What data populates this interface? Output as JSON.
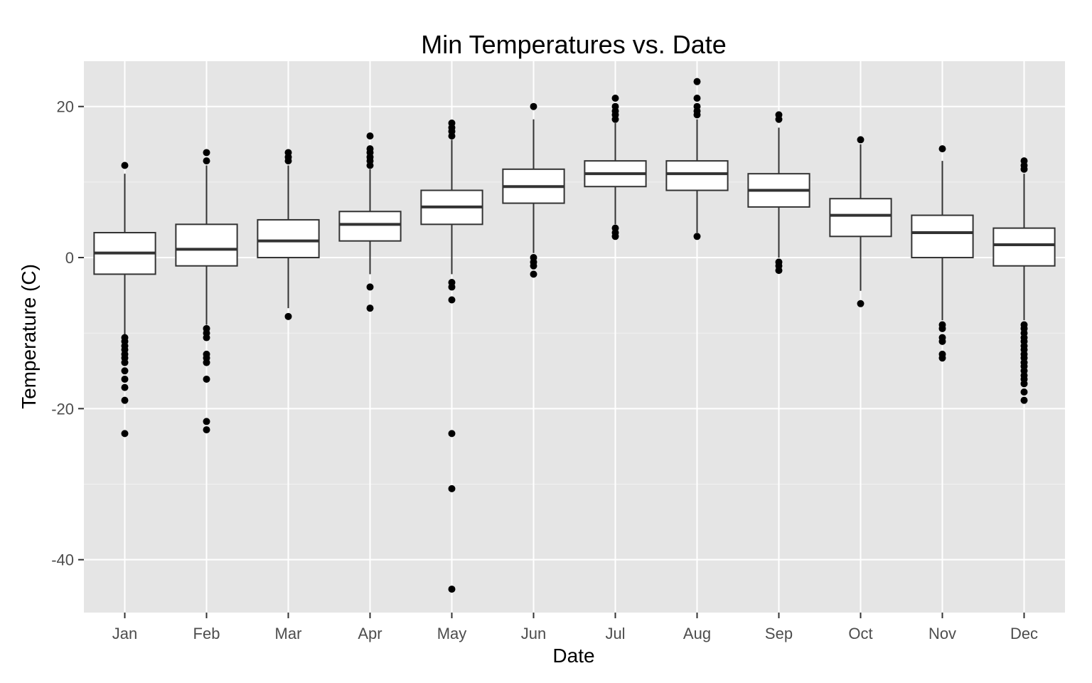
{
  "chart_data": {
    "type": "boxplot",
    "title": "Min Temperatures vs. Date",
    "xlabel": "Date",
    "ylabel": "Temperature (C)",
    "ylim": [
      -47,
      26
    ],
    "yticks": [
      -40,
      -20,
      0,
      20
    ],
    "grid": true,
    "categories": [
      "Jan",
      "Feb",
      "Mar",
      "Apr",
      "May",
      "Jun",
      "Jul",
      "Aug",
      "Sep",
      "Oct",
      "Nov",
      "Dec"
    ],
    "boxes": [
      {
        "q1": -2.2,
        "median": 0.6,
        "q3": 3.3,
        "whisker_low": -10.4,
        "whisker_high": 11.1,
        "outliers": [
          12.2,
          -10.6,
          -11.1,
          -11.7,
          -12.2,
          -12.8,
          -13.3,
          -13.9,
          -15.0,
          -16.1,
          -17.2,
          -18.9,
          -23.3
        ]
      },
      {
        "q1": -1.1,
        "median": 1.1,
        "q3": 4.4,
        "whisker_low": -8.9,
        "whisker_high": 12.2,
        "outliers": [
          13.9,
          12.8,
          -9.4,
          -10.0,
          -10.6,
          -12.8,
          -13.3,
          -13.9,
          -16.1,
          -21.7,
          -22.8
        ]
      },
      {
        "q1": 0.0,
        "median": 2.2,
        "q3": 5.0,
        "whisker_low": -6.7,
        "whisker_high": 12.2,
        "outliers": [
          13.9,
          13.3,
          12.8,
          -7.8
        ]
      },
      {
        "q1": 2.2,
        "median": 4.4,
        "q3": 6.1,
        "whisker_low": -2.2,
        "whisker_high": 11.7,
        "outliers": [
          16.1,
          14.4,
          13.9,
          13.3,
          12.8,
          12.2,
          -3.9,
          -6.7
        ]
      },
      {
        "q1": 4.4,
        "median": 6.7,
        "q3": 8.9,
        "whisker_low": -2.2,
        "whisker_high": 15.6,
        "outliers": [
          17.8,
          17.2,
          16.7,
          16.1,
          -3.3,
          -3.9,
          -5.6,
          -23.3,
          -30.6,
          -43.9
        ]
      },
      {
        "q1": 7.2,
        "median": 9.4,
        "q3": 11.7,
        "whisker_low": 0.6,
        "whisker_high": 18.3,
        "outliers": [
          20.0,
          0.0,
          -0.6,
          -1.1,
          -2.2
        ]
      },
      {
        "q1": 9.4,
        "median": 11.1,
        "q3": 12.8,
        "whisker_low": 4.4,
        "whisker_high": 17.8,
        "outliers": [
          21.1,
          20.0,
          19.4,
          18.9,
          18.3,
          3.9,
          3.3,
          2.8
        ]
      },
      {
        "q1": 8.9,
        "median": 11.1,
        "q3": 12.8,
        "whisker_low": 3.3,
        "whisker_high": 18.3,
        "outliers": [
          23.3,
          21.1,
          20.0,
          19.4,
          18.9,
          2.8
        ]
      },
      {
        "q1": 6.7,
        "median": 8.9,
        "q3": 11.1,
        "whisker_low": 0.0,
        "whisker_high": 17.2,
        "outliers": [
          18.9,
          18.3,
          -0.6,
          -1.1,
          -1.7
        ]
      },
      {
        "q1": 2.8,
        "median": 5.6,
        "q3": 7.8,
        "whisker_low": -4.4,
        "whisker_high": 15.0,
        "outliers": [
          15.6,
          -6.1
        ]
      },
      {
        "q1": 0.0,
        "median": 3.3,
        "q3": 5.6,
        "whisker_low": -8.3,
        "whisker_high": 12.8,
        "outliers": [
          14.4,
          -8.9,
          -9.4,
          -10.6,
          -11.1,
          -12.8,
          -13.3
        ]
      },
      {
        "q1": -1.1,
        "median": 1.7,
        "q3": 3.9,
        "whisker_low": -8.3,
        "whisker_high": 11.1,
        "outliers": [
          12.8,
          12.2,
          11.7,
          -8.9,
          -9.4,
          -10.0,
          -10.6,
          -11.1,
          -11.7,
          -12.2,
          -12.8,
          -13.3,
          -13.9,
          -14.4,
          -15.0,
          -15.6,
          -16.1,
          -16.7,
          -17.8,
          -18.9
        ]
      }
    ]
  }
}
